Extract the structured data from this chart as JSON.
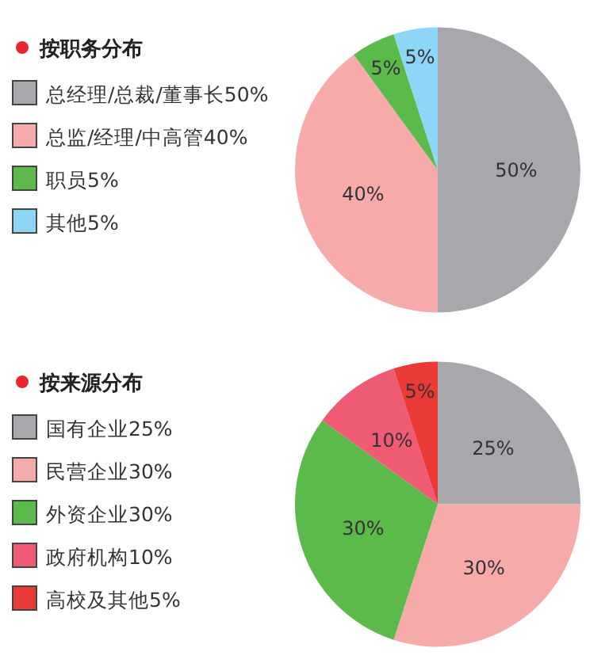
{
  "chart_data": [
    {
      "type": "pie",
      "title": "按职务分布",
      "categories": [
        "总经理/总裁/董事长50%",
        "总监/经理/中高管40%",
        "职员5%",
        "其他5%"
      ],
      "values": [
        50,
        40,
        5,
        5
      ],
      "colors": [
        "#a7a8ac",
        "#f6aaaa",
        "#5cba4a",
        "#8ed6f7"
      ],
      "value_labels": [
        "50%",
        "40%",
        "5%",
        "5%"
      ],
      "legend": "left"
    },
    {
      "type": "pie",
      "title": "按来源分布",
      "categories": [
        "国有企业25%",
        "民营企业30%",
        "外资企业30%",
        "政府机构10%",
        "高校及其他5%"
      ],
      "values": [
        25,
        30,
        30,
        10,
        5
      ],
      "colors": [
        "#a7a8ac",
        "#f6aaaa",
        "#5cba4a",
        "#ef5a74",
        "#e93a36"
      ],
      "value_labels": [
        "25%",
        "30%",
        "30%",
        "10%",
        "5%"
      ],
      "legend": "left"
    }
  ]
}
